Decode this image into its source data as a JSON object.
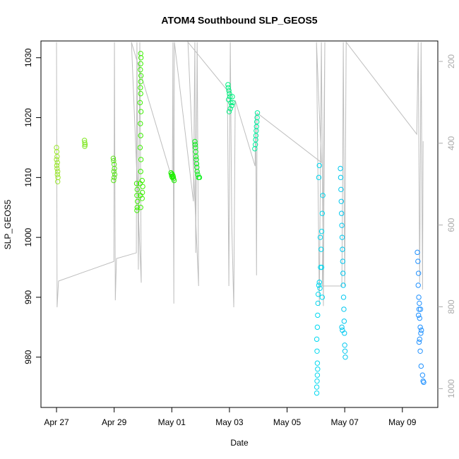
{
  "chart_data": {
    "type": "scatter",
    "title": "ATOM4 Southbound SLP_GEOS5",
    "x_label": "Date",
    "y_label": "SLP_GEOS5",
    "xlim": [
      -0.54,
      13.23
    ],
    "ylim": [
      971.6,
      1032.8
    ],
    "y2lim": [
      1046,
      150
    ],
    "xticks": [
      {
        "value": 0,
        "label": "Apr 27"
      },
      {
        "value": 2,
        "label": "Apr 29"
      },
      {
        "value": 4,
        "label": "May 01"
      },
      {
        "value": 6,
        "label": "May 03"
      },
      {
        "value": 8,
        "label": "May 05"
      },
      {
        "value": 10,
        "label": "May 07"
      },
      {
        "value": 12,
        "label": "May 09"
      }
    ],
    "yticks": [
      980,
      990,
      1000,
      1010,
      1020,
      1030
    ],
    "y2ticks": [
      200,
      400,
      600,
      800,
      1000
    ],
    "series": [
      {
        "type": "line",
        "axis": "y2",
        "color": "#bebebe",
        "x": [
          0,
          0.02,
          0.07,
          1.99,
          2.01,
          2.04,
          2.08,
          2.77,
          2.79,
          2.84,
          2.89,
          2.94,
          2.6,
          4.02,
          4.04,
          4.07,
          4.09,
          4.75,
          4.8,
          4.83,
          4.88,
          4.93,
          4.56,
          5.93,
          5.98,
          6.03,
          6.08,
          6.15,
          6.2,
          6.89,
          6.91,
          6.94,
          6.96,
          9.19,
          9.02,
          9.12,
          9.19,
          9.26,
          9.31,
          9.22,
          9.9,
          9.93,
          9.95,
          10.0,
          10.05,
          12.5,
          12.55,
          12.6,
          12.65,
          12.7,
          12.72
        ],
        "values": [
          153,
          801,
          737,
          689,
          153,
          784,
          682,
          668,
          153,
          709,
          153,
          741,
          153,
          490,
          153,
          792,
          153,
          542,
          153,
          668,
          153,
          749,
          153,
          271,
          749,
          153,
          597,
          801,
          295,
          456,
          326,
          723,
          326,
          447,
          153,
          798,
          153,
          798,
          153,
          749,
          749,
          481,
          153,
          749,
          153,
          378,
          153,
          741,
          153,
          758,
          395
        ]
      },
      {
        "color": "#9ae62c",
        "x": [
          0,
          0.01,
          0.02,
          0,
          0.03,
          0.01,
          0.02,
          0.04,
          0.03,
          0.05,
          0.04
        ],
        "values": [
          1015,
          1014.3,
          1013.5,
          1013,
          1012.5,
          1012,
          1011.5,
          1011,
          1010.5,
          1010,
          1009.3
        ]
      },
      {
        "color": "#7fe620",
        "x": [
          0.97,
          0.98,
          0.99,
          0.98
        ],
        "values": [
          1016.2,
          1015.8,
          1015.5,
          1015.2
        ]
      },
      {
        "color": "#5ae61a",
        "x": [
          1.97,
          1.98,
          2.0,
          2.01,
          1.99,
          2.02,
          2.0,
          1.98
        ],
        "values": [
          1013.2,
          1012.8,
          1012.2,
          1011.5,
          1011,
          1010.5,
          1010,
          1009.5
        ]
      },
      {
        "color": "#3cf000",
        "x": [
          2.92,
          2.93,
          2.92,
          2.91,
          2.93,
          2.92,
          2.91,
          2.92,
          2.9,
          2.93,
          2.91,
          2.92,
          2.9,
          2.93,
          2.92,
          2.9,
          2.91,
          2.92,
          2.78,
          2.8,
          2.79,
          2.81,
          2.8,
          2.79,
          2.97,
          2.99,
          2.98,
          2.97
        ],
        "values": [
          1030.7,
          1030,
          1029,
          1028,
          1027,
          1026,
          1025,
          1024,
          1022.5,
          1021,
          1019,
          1017,
          1015,
          1013,
          1011,
          1009,
          1007,
          1005,
          1009,
          1008,
          1007,
          1006,
          1005,
          1004.5,
          1009.5,
          1008.5,
          1007.5,
          1006.5
        ]
      },
      {
        "color": "#1ef000",
        "x": [
          3.97,
          3.99,
          4.0,
          4.02,
          4.04,
          4.06,
          4.08,
          4.01,
          4.05
        ],
        "values": [
          1010.8,
          1010.5,
          1010.2,
          1010,
          1010.3,
          1009.8,
          1009.5,
          1010.6,
          1010.1
        ]
      },
      {
        "color": "#10f020",
        "x": [
          4.8,
          4.81,
          4.82,
          4.83,
          4.84,
          4.85,
          4.86,
          4.87,
          4.88,
          4.9,
          4.93,
          4.96
        ],
        "values": [
          1016,
          1015.5,
          1015,
          1014.3,
          1013.5,
          1013,
          1012.3,
          1011.7,
          1011,
          1010.5,
          1010,
          1010
        ]
      },
      {
        "color": "#00f080",
        "x": [
          5.95,
          5.96,
          5.98,
          6.0,
          6.02,
          5.97,
          6.05,
          6.08,
          6.1,
          6.03,
          5.99,
          6.12
        ],
        "values": [
          1025.5,
          1025,
          1024.5,
          1024,
          1023.5,
          1023,
          1022.5,
          1022,
          1023.5,
          1021.5,
          1021,
          1022.5
        ]
      },
      {
        "color": "#00f0a0",
        "x": [
          6.88,
          6.9,
          6.91,
          6.92,
          6.93,
          6.94,
          6.95,
          6.96,
          6.97
        ],
        "values": [
          1014.8,
          1015.5,
          1016.3,
          1017,
          1017.8,
          1018.5,
          1019.3,
          1020,
          1020.8
        ]
      },
      {
        "color": "#00d8f0",
        "x": [
          9.03,
          9.03,
          9.04,
          9.05,
          9.06,
          9.05,
          9.04,
          9.03,
          9.05,
          9.06,
          9.07,
          9.08,
          9.1,
          9.12,
          9.14,
          9.16,
          9.18,
          9.2,
          9.22,
          9.24,
          9.1,
          9.12,
          9.15,
          9.2,
          9.22
        ],
        "values": [
          974,
          975,
          976,
          977,
          978,
          979,
          981,
          983,
          985,
          987,
          989,
          990.5,
          992,
          992.5,
          991.5,
          995,
          998,
          1001,
          1004,
          1007,
          1010,
          1012,
          1000,
          995,
          990
        ]
      },
      {
        "color": "#00c8f0",
        "x": [
          9.85,
          9.86,
          9.87,
          9.88,
          9.89,
          9.9,
          9.91,
          9.92,
          9.93,
          9.94,
          9.95,
          9.96,
          9.97,
          9.98,
          9.99,
          10.0,
          10.01,
          10.02,
          9.9,
          9.92
        ],
        "values": [
          1011.5,
          1010,
          1008,
          1006,
          1004,
          1002,
          1000,
          998,
          996,
          994,
          992,
          990,
          988,
          986,
          984,
          982,
          981,
          980,
          985,
          984.5
        ]
      },
      {
        "color": "#1e90ff",
        "x": [
          12.52,
          12.54,
          12.56,
          12.55,
          12.57,
          12.58,
          12.6,
          12.62,
          12.64,
          12.6,
          12.58,
          12.62,
          12.65,
          12.7,
          12.72,
          12.74,
          12.56,
          12.59,
          12.63,
          12.66
        ],
        "values": [
          997.5,
          996,
          994,
          992,
          990,
          988,
          986.5,
          985,
          984,
          983,
          982.5,
          981,
          978.5,
          977,
          976,
          975.8,
          987,
          989,
          988,
          984.5
        ]
      }
    ]
  }
}
